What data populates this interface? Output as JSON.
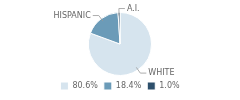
{
  "chart_data": {
    "type": "pie",
    "categories": [
      "WHITE",
      "HISPANIC",
      "A.I."
    ],
    "values": [
      80.6,
      18.4,
      1.0
    ],
    "value_labels": [
      "80.6%",
      "18.4%",
      "1.0%"
    ],
    "colors": [
      "#d6e4ee",
      "#6b9bb8",
      "#2d4f6b"
    ],
    "legend": "bottom"
  }
}
